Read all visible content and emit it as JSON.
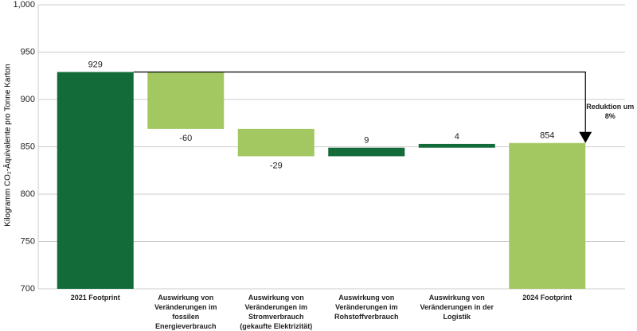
{
  "chart_data": {
    "type": "waterfall",
    "y_label": "Kilogramm CO₂-Äquivalente pro Tonne Karton",
    "categories": [
      "2021 Footprint",
      "Auswirkung von Veränderungen im fossilen Energieverbrauch",
      "Auswirkung von Veränderungen im Stromverbrauch (gekaufte Elektrizität)",
      "Auswirkung von Veränderungen im Rohstoffverbrauch",
      "Auswirkung von Veränderungen in der Logistik",
      "2024 Footprint"
    ],
    "values": [
      929,
      -60,
      -29,
      9,
      4,
      854
    ],
    "colors": [
      "#136b3a",
      "#a3c862",
      "#a3c862",
      "#136b3a",
      "#136b3a",
      "#a3c862"
    ],
    "annotation": "Reduktion um 8%",
    "ylim": [
      700,
      1000
    ],
    "yticks": [
      700,
      750,
      800,
      850,
      900,
      950,
      {
        "value": 1000,
        "label": "1,000"
      }
    ],
    "grid": true
  }
}
